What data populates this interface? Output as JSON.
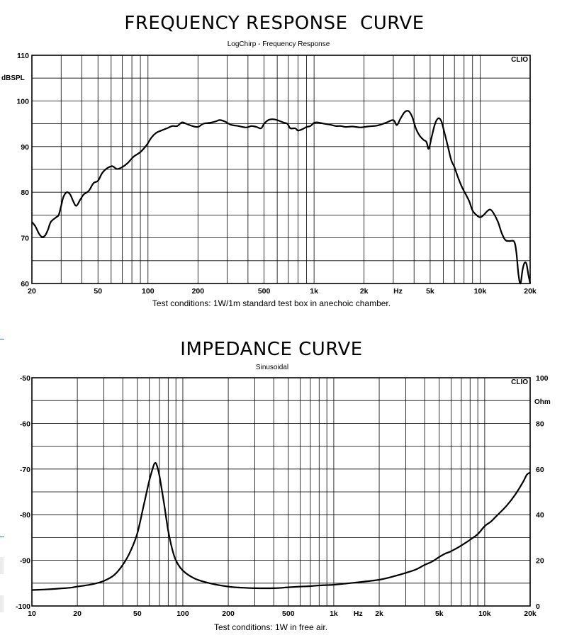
{
  "charts": [
    {
      "title": "FREQUENCY RESPONSE  CURVE",
      "subtitle": "LogChirp - Frequency Response",
      "brand": "CLIO",
      "yunit": "dBSPL",
      "xunit": "Hz",
      "conditions": "Test conditions: 1W/1m standard test box in anechoic chamber."
    },
    {
      "title": "IMPEDANCE CURVE",
      "subtitle": "Sinusoidal",
      "brand": "CLIO",
      "yunit": "Ohm",
      "xunit": "Hz",
      "conditions": "Test conditions: 1W in free air."
    }
  ],
  "chart_data": [
    {
      "type": "line",
      "title": "FREQUENCY RESPONSE  CURVE",
      "subtitle": "LogChirp - Frequency Response",
      "xlabel": "Hz",
      "ylabel": "dBSPL",
      "xscale": "log",
      "xlim": [
        20,
        20000
      ],
      "ylim": [
        60,
        110
      ],
      "grid": true,
      "x_ticks": [
        {
          "v": 20,
          "label": "20"
        },
        {
          "v": 50,
          "label": "50"
        },
        {
          "v": 100,
          "label": "100"
        },
        {
          "v": 200,
          "label": "200"
        },
        {
          "v": 500,
          "label": "500"
        },
        {
          "v": 1000,
          "label": "1k"
        },
        {
          "v": 2000,
          "label": "2k"
        },
        {
          "v": 5000,
          "label": "5k"
        },
        {
          "v": 10000,
          "label": "10k"
        },
        {
          "v": 20000,
          "label": "20k"
        }
      ],
      "y_ticks": [
        {
          "v": 60,
          "label": "60"
        },
        {
          "v": 70,
          "label": "70"
        },
        {
          "v": 80,
          "label": "80"
        },
        {
          "v": 90,
          "label": "90"
        },
        {
          "v": 100,
          "label": "100"
        },
        {
          "v": 110,
          "label": "110"
        }
      ],
      "series": [
        {
          "points": [
            [
              20,
              73.5
            ],
            [
              21,
              72.5
            ],
            [
              22,
              71
            ],
            [
              23,
              70.2
            ],
            [
              24,
              70.5
            ],
            [
              25,
              71.8
            ],
            [
              26,
              73.5
            ],
            [
              28,
              74.5
            ],
            [
              29,
              75
            ],
            [
              30,
              77
            ],
            [
              31,
              79
            ],
            [
              32.5,
              80
            ],
            [
              34,
              79.5
            ],
            [
              35.5,
              78
            ],
            [
              37,
              77
            ],
            [
              39,
              78.3
            ],
            [
              41,
              79.5
            ],
            [
              44,
              80.3
            ],
            [
              47,
              82
            ],
            [
              50,
              82.5
            ],
            [
              53,
              84.2
            ],
            [
              57,
              85.3
            ],
            [
              61,
              85.7
            ],
            [
              65,
              85.1
            ],
            [
              70,
              85.5
            ],
            [
              76,
              86.5
            ],
            [
              82,
              87.8
            ],
            [
              90,
              88.8
            ],
            [
              98,
              90.3
            ],
            [
              105,
              92
            ],
            [
              112,
              93
            ],
            [
              120,
              93.5
            ],
            [
              130,
              94
            ],
            [
              140,
              94.5
            ],
            [
              150,
              94.5
            ],
            [
              160,
              95.3
            ],
            [
              170,
              95
            ],
            [
              185,
              94.5
            ],
            [
              200,
              94.3
            ],
            [
              215,
              95
            ],
            [
              235,
              95.2
            ],
            [
              255,
              95.5
            ],
            [
              270,
              95.8
            ],
            [
              290,
              95.5
            ],
            [
              315,
              94.8
            ],
            [
              350,
              94.5
            ],
            [
              390,
              94.2
            ],
            [
              420,
              94.5
            ],
            [
              450,
              94.3
            ],
            [
              480,
              94
            ],
            [
              500,
              95
            ],
            [
              530,
              95.8
            ],
            [
              560,
              96
            ],
            [
              600,
              95.8
            ],
            [
              650,
              95.3
            ],
            [
              690,
              95
            ],
            [
              720,
              94
            ],
            [
              770,
              94
            ],
            [
              800,
              93.5
            ],
            [
              850,
              93.8
            ],
            [
              900,
              94.3
            ],
            [
              950,
              94.5
            ],
            [
              1000,
              95.2
            ],
            [
              1050,
              95.3
            ],
            [
              1150,
              95
            ],
            [
              1250,
              94.8
            ],
            [
              1350,
              94.5
            ],
            [
              1450,
              94.5
            ],
            [
              1550,
              94.3
            ],
            [
              1700,
              94.4
            ],
            [
              1900,
              94.2
            ],
            [
              2100,
              94.4
            ],
            [
              2400,
              94.6
            ],
            [
              2700,
              95.2
            ],
            [
              3000,
              95.8
            ],
            [
              3150,
              94.7
            ],
            [
              3300,
              96
            ],
            [
              3500,
              97.5
            ],
            [
              3700,
              97.8
            ],
            [
              3900,
              96.5
            ],
            [
              4100,
              94
            ],
            [
              4300,
              92.5
            ],
            [
              4550,
              91.5
            ],
            [
              4750,
              91
            ],
            [
              4900,
              89.5
            ],
            [
              5100,
              92
            ],
            [
              5350,
              95
            ],
            [
              5600,
              96.2
            ],
            [
              5850,
              95.5
            ],
            [
              6100,
              93
            ],
            [
              6400,
              90
            ],
            [
              6700,
              87
            ],
            [
              7000,
              85.5
            ],
            [
              7400,
              83
            ],
            [
              7800,
              81
            ],
            [
              8200,
              79.5
            ],
            [
              8600,
              78
            ],
            [
              9000,
              76
            ],
            [
              9500,
              75
            ],
            [
              10000,
              74.5
            ],
            [
              10500,
              75
            ],
            [
              11000,
              75.8
            ],
            [
              11500,
              76.2
            ],
            [
              12000,
              75.5
            ],
            [
              12800,
              73.5
            ],
            [
              13500,
              71
            ],
            [
              14200,
              69.5
            ],
            [
              15000,
              69.3
            ],
            [
              16000,
              69.2
            ],
            [
              16500,
              67
            ],
            [
              17000,
              62
            ],
            [
              17500,
              60
            ],
            [
              18000,
              63
            ],
            [
              18500,
              64.5
            ],
            [
              19000,
              64.3
            ],
            [
              19500,
              62
            ],
            [
              20000,
              60
            ]
          ]
        }
      ]
    },
    {
      "type": "line",
      "title": "IMPEDANCE CURVE",
      "subtitle": "Sinusoidal",
      "xlabel": "Hz",
      "ylabel": "Ohm",
      "xscale": "log",
      "xlim": [
        10,
        20000
      ],
      "ylim": [
        0,
        100
      ],
      "grid": true,
      "x_ticks": [
        {
          "v": 10,
          "label": "10"
        },
        {
          "v": 20,
          "label": "20"
        },
        {
          "v": 50,
          "label": "50"
        },
        {
          "v": 100,
          "label": "100"
        },
        {
          "v": 200,
          "label": "200"
        },
        {
          "v": 500,
          "label": "500"
        },
        {
          "v": 1000,
          "label": "1k"
        },
        {
          "v": 2000,
          "label": "2k"
        },
        {
          "v": 5000,
          "label": "5k"
        },
        {
          "v": 10000,
          "label": "10k"
        },
        {
          "v": 20000,
          "label": "20k"
        }
      ],
      "y_ticks_left": [
        {
          "v": 100,
          "label": "-50"
        },
        {
          "v": 80,
          "label": "-60"
        },
        {
          "v": 60,
          "label": "-70"
        },
        {
          "v": 40,
          "label": "-80"
        },
        {
          "v": 20,
          "label": "-90"
        },
        {
          "v": 0,
          "label": "-100"
        }
      ],
      "y_ticks_right": [
        {
          "v": 100,
          "label": "100"
        },
        {
          "v": 80,
          "label": "80"
        },
        {
          "v": 60,
          "label": "60"
        },
        {
          "v": 40,
          "label": "40"
        },
        {
          "v": 20,
          "label": "20"
        },
        {
          "v": 0,
          "label": "0"
        }
      ],
      "series": [
        {
          "points": [
            [
              10,
              7
            ],
            [
              12,
              7.2
            ],
            [
              15,
              7.6
            ],
            [
              18,
              8
            ],
            [
              20,
              8.5
            ],
            [
              25,
              9.5
            ],
            [
              30,
              11
            ],
            [
              35,
              13.5
            ],
            [
              40,
              18
            ],
            [
              45,
              24
            ],
            [
              50,
              32
            ],
            [
              55,
              44
            ],
            [
              60,
              55
            ],
            [
              63,
              60
            ],
            [
              65,
              62.5
            ],
            [
              67,
              62
            ],
            [
              70,
              57
            ],
            [
              75,
              45
            ],
            [
              80,
              33
            ],
            [
              85,
              25
            ],
            [
              90,
              20
            ],
            [
              100,
              15.5
            ],
            [
              120,
              12
            ],
            [
              150,
              10
            ],
            [
              200,
              8.5
            ],
            [
              250,
              8
            ],
            [
              300,
              7.8
            ],
            [
              400,
              7.8
            ],
            [
              500,
              8.2
            ],
            [
              600,
              8.5
            ],
            [
              700,
              8.7
            ],
            [
              800,
              9
            ],
            [
              1000,
              9.3
            ],
            [
              1200,
              9.8
            ],
            [
              1500,
              10.5
            ],
            [
              2000,
              11.5
            ],
            [
              2500,
              13
            ],
            [
              3000,
              14.5
            ],
            [
              3500,
              16
            ],
            [
              4000,
              18
            ],
            [
              4500,
              19.5
            ],
            [
              5000,
              21.5
            ],
            [
              5500,
              23
            ],
            [
              6000,
              24
            ],
            [
              7000,
              26.5
            ],
            [
              8000,
              29
            ],
            [
              9000,
              31.5
            ],
            [
              10000,
              35
            ],
            [
              11000,
              37
            ],
            [
              12000,
              39.5
            ],
            [
              14000,
              44
            ],
            [
              16000,
              49
            ],
            [
              18000,
              54.5
            ],
            [
              19000,
              57.5
            ],
            [
              20000,
              58.5
            ]
          ]
        }
      ]
    }
  ]
}
